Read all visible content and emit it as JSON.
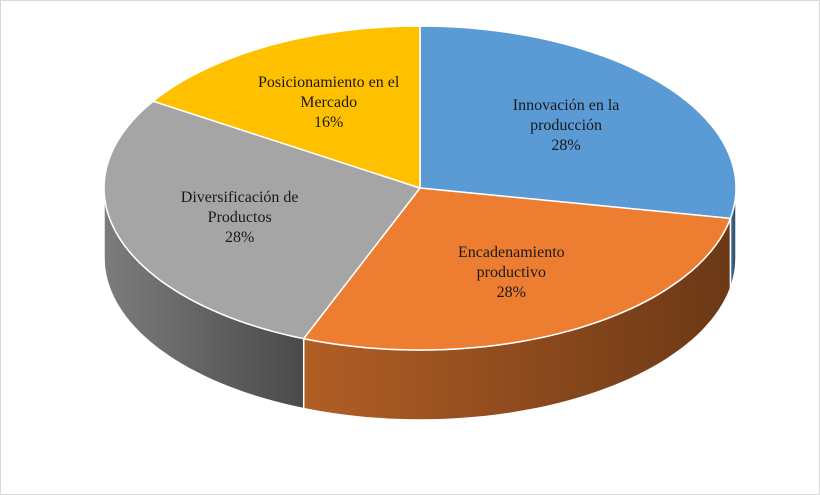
{
  "chart_data": {
    "type": "pie",
    "categories": [
      "Innovación en la producción",
      "Encadenamiento productivo",
      "Diversificación de Productos",
      "Posicionamiento en el Mercado"
    ],
    "values": [
      28,
      28,
      28,
      16
    ],
    "value_labels": [
      "28%",
      "28%",
      "28%",
      "16%"
    ],
    "colors": [
      "#5b9bd5",
      "#ed7d31",
      "#a5a5a5",
      "#ffc000"
    ]
  }
}
